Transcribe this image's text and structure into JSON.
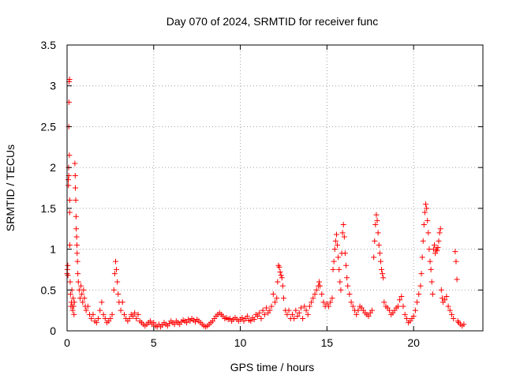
{
  "chart_data": {
    "type": "scatter",
    "title": "Day 070 of 2024, SRMTID for receiver func",
    "xlabel": "GPS time / hours",
    "ylabel": "SRMTID / TECUs",
    "xlim": [
      0,
      24
    ],
    "ylim": [
      0,
      3.5
    ],
    "xticks": [
      0,
      5,
      10,
      15,
      20
    ],
    "xtick_labels": [
      "0",
      "5",
      "10",
      "15",
      "20"
    ],
    "yticks": [
      0,
      0.5,
      1,
      1.5,
      2,
      2.5,
      3,
      3.5
    ],
    "ytick_labels": [
      "0",
      "0.5",
      "1",
      "1.5",
      "2",
      "2.5",
      "3",
      "3.5"
    ],
    "grid": true,
    "marker": "+",
    "color": "#ff0000",
    "series": [
      {
        "name": "SRMTID",
        "points": [
          [
            0.0,
            0.7
          ],
          [
            0.02,
            0.75
          ],
          [
            0.04,
            0.8
          ],
          [
            0.05,
            0.68
          ],
          [
            0.07,
            1.85
          ],
          [
            0.08,
            1.78
          ],
          [
            0.09,
            2.0
          ],
          [
            0.1,
            1.9
          ],
          [
            0.1,
            2.5
          ],
          [
            0.11,
            2.8
          ],
          [
            0.12,
            3.05
          ],
          [
            0.14,
            3.08
          ],
          [
            0.13,
            2.15
          ],
          [
            0.15,
            1.45
          ],
          [
            0.15,
            1.6
          ],
          [
            0.16,
            1.05
          ],
          [
            0.18,
            0.6
          ],
          [
            0.2,
            0.45
          ],
          [
            0.22,
            0.3
          ],
          [
            0.25,
            0.35
          ],
          [
            0.28,
            0.5
          ],
          [
            0.3,
            0.3
          ],
          [
            0.32,
            0.25
          ],
          [
            0.35,
            0.4
          ],
          [
            0.38,
            0.3
          ],
          [
            0.4,
            0.2
          ],
          [
            0.42,
            0.35
          ],
          [
            0.45,
            2.05
          ],
          [
            0.47,
            1.9
          ],
          [
            0.48,
            1.75
          ],
          [
            0.5,
            1.6
          ],
          [
            0.52,
            1.4
          ],
          [
            0.53,
            1.25
          ],
          [
            0.55,
            1.15
          ],
          [
            0.57,
            1.05
          ],
          [
            0.58,
            0.95
          ],
          [
            0.6,
            0.85
          ],
          [
            0.62,
            0.7
          ],
          [
            0.65,
            0.6
          ],
          [
            0.7,
            0.5
          ],
          [
            0.75,
            0.4
          ],
          [
            0.8,
            0.55
          ],
          [
            0.85,
            0.45
          ],
          [
            0.9,
            0.35
          ],
          [
            0.95,
            0.5
          ],
          [
            1.0,
            0.4
          ],
          [
            1.05,
            0.3
          ],
          [
            1.1,
            0.25
          ],
          [
            1.2,
            0.3
          ],
          [
            1.3,
            0.2
          ],
          [
            1.4,
            0.15
          ],
          [
            1.5,
            0.2
          ],
          [
            1.6,
            0.12
          ],
          [
            1.7,
            0.1
          ],
          [
            1.8,
            0.15
          ],
          [
            1.9,
            0.25
          ],
          [
            2.0,
            0.35
          ],
          [
            2.1,
            0.2
          ],
          [
            2.2,
            0.15
          ],
          [
            2.3,
            0.1
          ],
          [
            2.4,
            0.12
          ],
          [
            2.5,
            0.15
          ],
          [
            2.6,
            0.2
          ],
          [
            2.7,
            0.5
          ],
          [
            2.75,
            0.7
          ],
          [
            2.8,
            0.85
          ],
          [
            2.85,
            0.75
          ],
          [
            2.9,
            0.6
          ],
          [
            2.95,
            0.45
          ],
          [
            3.0,
            0.35
          ],
          [
            3.1,
            0.25
          ],
          [
            3.2,
            0.35
          ],
          [
            3.3,
            0.2
          ],
          [
            3.4,
            0.15
          ],
          [
            3.5,
            0.12
          ],
          [
            3.6,
            0.15
          ],
          [
            3.7,
            0.2
          ],
          [
            3.8,
            0.18
          ],
          [
            3.9,
            0.22
          ],
          [
            4.0,
            0.15
          ],
          [
            4.1,
            0.2
          ],
          [
            4.2,
            0.12
          ],
          [
            4.3,
            0.1
          ],
          [
            4.4,
            0.08
          ],
          [
            4.5,
            0.06
          ],
          [
            4.6,
            0.08
          ],
          [
            4.7,
            0.1
          ],
          [
            4.8,
            0.12
          ],
          [
            4.9,
            0.08
          ],
          [
            5.0,
            0.1
          ],
          [
            5.1,
            0.06
          ],
          [
            5.2,
            0.05
          ],
          [
            5.3,
            0.08
          ],
          [
            5.4,
            0.05
          ],
          [
            5.5,
            0.07
          ],
          [
            5.6,
            0.1
          ],
          [
            5.7,
            0.08
          ],
          [
            5.8,
            0.06
          ],
          [
            5.9,
            0.09
          ],
          [
            6.0,
            0.12
          ],
          [
            6.1,
            0.1
          ],
          [
            6.2,
            0.08
          ],
          [
            6.3,
            0.12
          ],
          [
            6.4,
            0.1
          ],
          [
            6.5,
            0.08
          ],
          [
            6.6,
            0.11
          ],
          [
            6.7,
            0.13
          ],
          [
            6.8,
            0.12
          ],
          [
            6.9,
            0.1
          ],
          [
            7.0,
            0.14
          ],
          [
            7.1,
            0.12
          ],
          [
            7.2,
            0.15
          ],
          [
            7.3,
            0.13
          ],
          [
            7.4,
            0.11
          ],
          [
            7.5,
            0.14
          ],
          [
            7.6,
            0.12
          ],
          [
            7.7,
            0.1
          ],
          [
            7.8,
            0.08
          ],
          [
            7.9,
            0.06
          ],
          [
            8.0,
            0.05
          ],
          [
            8.1,
            0.06
          ],
          [
            8.2,
            0.08
          ],
          [
            8.3,
            0.1
          ],
          [
            8.4,
            0.12
          ],
          [
            8.5,
            0.15
          ],
          [
            8.6,
            0.18
          ],
          [
            8.7,
            0.2
          ],
          [
            8.8,
            0.22
          ],
          [
            8.9,
            0.2
          ],
          [
            9.0,
            0.18
          ],
          [
            9.1,
            0.15
          ],
          [
            9.2,
            0.16
          ],
          [
            9.3,
            0.14
          ],
          [
            9.4,
            0.15
          ],
          [
            9.5,
            0.12
          ],
          [
            9.6,
            0.14
          ],
          [
            9.7,
            0.16
          ],
          [
            9.8,
            0.14
          ],
          [
            9.9,
            0.12
          ],
          [
            10.0,
            0.14
          ],
          [
            10.1,
            0.16
          ],
          [
            10.2,
            0.12
          ],
          [
            10.3,
            0.15
          ],
          [
            10.4,
            0.18
          ],
          [
            10.5,
            0.13
          ],
          [
            10.6,
            0.12
          ],
          [
            10.7,
            0.16
          ],
          [
            10.8,
            0.14
          ],
          [
            10.9,
            0.2
          ],
          [
            11.0,
            0.18
          ],
          [
            11.1,
            0.22
          ],
          [
            11.2,
            0.15
          ],
          [
            11.3,
            0.25
          ],
          [
            11.4,
            0.2
          ],
          [
            11.5,
            0.28
          ],
          [
            11.6,
            0.22
          ],
          [
            11.7,
            0.25
          ],
          [
            11.8,
            0.3
          ],
          [
            11.9,
            0.45
          ],
          [
            12.0,
            0.35
          ],
          [
            12.1,
            0.4
          ],
          [
            12.15,
            0.6
          ],
          [
            12.2,
            0.8
          ],
          [
            12.25,
            0.78
          ],
          [
            12.3,
            0.72
          ],
          [
            12.35,
            0.68
          ],
          [
            12.4,
            0.65
          ],
          [
            12.45,
            0.55
          ],
          [
            12.5,
            0.4
          ],
          [
            12.6,
            0.25
          ],
          [
            12.7,
            0.2
          ],
          [
            12.8,
            0.25
          ],
          [
            12.9,
            0.15
          ],
          [
            13.0,
            0.2
          ],
          [
            13.1,
            0.15
          ],
          [
            13.2,
            0.25
          ],
          [
            13.3,
            0.18
          ],
          [
            13.4,
            0.22
          ],
          [
            13.5,
            0.28
          ],
          [
            13.6,
            0.15
          ],
          [
            13.7,
            0.3
          ],
          [
            13.8,
            0.25
          ],
          [
            13.9,
            0.2
          ],
          [
            14.0,
            0.3
          ],
          [
            14.1,
            0.35
          ],
          [
            14.2,
            0.4
          ],
          [
            14.3,
            0.45
          ],
          [
            14.4,
            0.5
          ],
          [
            14.5,
            0.55
          ],
          [
            14.55,
            0.6
          ],
          [
            14.6,
            0.55
          ],
          [
            14.7,
            0.45
          ],
          [
            14.8,
            0.35
          ],
          [
            14.9,
            0.3
          ],
          [
            15.0,
            0.33
          ],
          [
            15.1,
            0.3
          ],
          [
            15.2,
            0.35
          ],
          [
            15.3,
            0.4
          ],
          [
            15.35,
            0.75
          ],
          [
            15.4,
            0.85
          ],
          [
            15.45,
            1.0
          ],
          [
            15.5,
            1.1
          ],
          [
            15.55,
            1.18
          ],
          [
            15.6,
            1.05
          ],
          [
            15.65,
            0.9
          ],
          [
            15.7,
            0.75
          ],
          [
            15.75,
            0.6
          ],
          [
            15.8,
            0.5
          ],
          [
            15.85,
            0.95
          ],
          [
            15.9,
            1.2
          ],
          [
            15.95,
            1.3
          ],
          [
            16.0,
            1.15
          ],
          [
            16.05,
            0.95
          ],
          [
            16.1,
            0.8
          ],
          [
            16.15,
            0.65
          ],
          [
            16.2,
            0.55
          ],
          [
            16.3,
            0.45
          ],
          [
            16.4,
            0.35
          ],
          [
            16.5,
            0.3
          ],
          [
            16.6,
            0.25
          ],
          [
            16.7,
            0.2
          ],
          [
            16.8,
            0.25
          ],
          [
            16.9,
            0.3
          ],
          [
            17.0,
            0.28
          ],
          [
            17.1,
            0.25
          ],
          [
            17.2,
            0.22
          ],
          [
            17.3,
            0.2
          ],
          [
            17.4,
            0.18
          ],
          [
            17.5,
            0.22
          ],
          [
            17.6,
            0.25
          ],
          [
            17.7,
            0.9
          ],
          [
            17.75,
            1.1
          ],
          [
            17.8,
            1.3
          ],
          [
            17.85,
            1.42
          ],
          [
            17.9,
            1.35
          ],
          [
            17.95,
            1.2
          ],
          [
            18.0,
            1.05
          ],
          [
            18.05,
            0.95
          ],
          [
            18.1,
            0.85
          ],
          [
            18.15,
            0.75
          ],
          [
            18.2,
            0.7
          ],
          [
            18.25,
            0.65
          ],
          [
            18.3,
            0.35
          ],
          [
            18.4,
            0.3
          ],
          [
            18.5,
            0.28
          ],
          [
            18.6,
            0.25
          ],
          [
            18.7,
            0.2
          ],
          [
            18.8,
            0.22
          ],
          [
            18.9,
            0.25
          ],
          [
            19.0,
            0.28
          ],
          [
            19.1,
            0.3
          ],
          [
            19.2,
            0.38
          ],
          [
            19.3,
            0.42
          ],
          [
            19.4,
            0.3
          ],
          [
            19.5,
            0.2
          ],
          [
            19.6,
            0.15
          ],
          [
            19.7,
            0.1
          ],
          [
            19.8,
            0.12
          ],
          [
            19.9,
            0.15
          ],
          [
            20.0,
            0.18
          ],
          [
            20.1,
            0.25
          ],
          [
            20.2,
            0.35
          ],
          [
            20.3,
            0.45
          ],
          [
            20.4,
            0.55
          ],
          [
            20.45,
            0.7
          ],
          [
            20.5,
            0.9
          ],
          [
            20.55,
            1.1
          ],
          [
            20.6,
            1.3
          ],
          [
            20.65,
            1.45
          ],
          [
            20.7,
            1.55
          ],
          [
            20.75,
            1.5
          ],
          [
            20.8,
            1.35
          ],
          [
            20.85,
            1.2
          ],
          [
            20.9,
            1.0
          ],
          [
            20.95,
            0.85
          ],
          [
            21.0,
            0.75
          ],
          [
            21.05,
            0.6
          ],
          [
            21.1,
            0.45
          ],
          [
            21.15,
            1.0
          ],
          [
            21.2,
            1.05
          ],
          [
            21.25,
            0.95
          ],
          [
            21.3,
            1.0
          ],
          [
            21.35,
            0.98
          ],
          [
            21.4,
            1.02
          ],
          [
            21.45,
            1.1
          ],
          [
            21.5,
            1.2
          ],
          [
            21.55,
            1.25
          ],
          [
            21.6,
            0.5
          ],
          [
            21.65,
            0.4
          ],
          [
            21.7,
            0.35
          ],
          [
            21.8,
            0.38
          ],
          [
            21.9,
            0.42
          ],
          [
            22.0,
            0.3
          ],
          [
            22.1,
            0.25
          ],
          [
            22.2,
            0.2
          ],
          [
            22.3,
            0.15
          ],
          [
            22.4,
            0.97
          ],
          [
            22.45,
            0.85
          ],
          [
            22.5,
            0.63
          ],
          [
            22.55,
            0.12
          ],
          [
            22.6,
            0.1
          ],
          [
            22.7,
            0.08
          ],
          [
            22.8,
            0.06
          ],
          [
            22.9,
            0.08
          ]
        ]
      }
    ]
  }
}
